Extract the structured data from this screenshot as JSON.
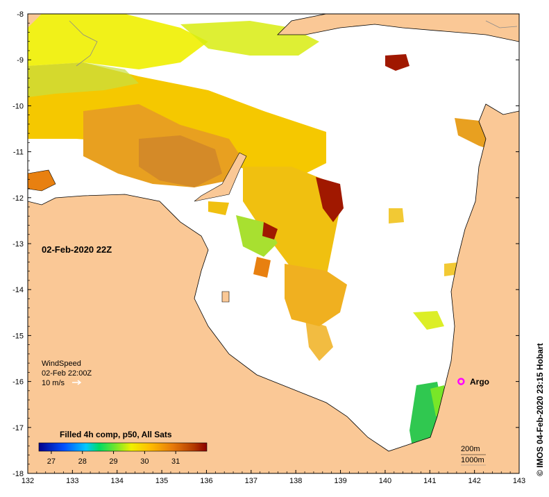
{
  "title_date": "02-Feb-2020 22Z",
  "x_axis": {
    "ticks": [
      "132",
      "133",
      "134",
      "135",
      "136",
      "137",
      "138",
      "139",
      "140",
      "141",
      "142",
      "143"
    ],
    "min": 132,
    "max": 143
  },
  "y_axis": {
    "ticks": [
      "-8",
      "-9",
      "-10",
      "-11",
      "-12",
      "-13",
      "-14",
      "-15",
      "-16",
      "-17",
      "-18"
    ],
    "min": -18,
    "max": -8
  },
  "wind": {
    "label": "WindSpeed",
    "time": "02-Feb 22:00Z",
    "scale": "10 m/s"
  },
  "argo": {
    "label": "Argo",
    "lon": 141.7,
    "lat": -16.0
  },
  "colorbar": {
    "title": "Filled 4h comp, p50, All Sats",
    "ticks": [
      "27",
      "28",
      "29",
      "30",
      "31"
    ],
    "min": 26.6,
    "max": 32.0,
    "colors": [
      "#00008b",
      "#0050ff",
      "#00c8ff",
      "#00dc64",
      "#78e628",
      "#f0f000",
      "#ffbe00",
      "#e6780a",
      "#b43c00",
      "#8b0000"
    ]
  },
  "depth_legend": {
    "contour1": "200m",
    "contour2": "1000m"
  },
  "copyright": "© IMOS 04-Feb-2020 23:15 Hobart",
  "colors": {
    "land": "#fac896",
    "sea": "#ffffff",
    "argo": "#ff00ff"
  }
}
